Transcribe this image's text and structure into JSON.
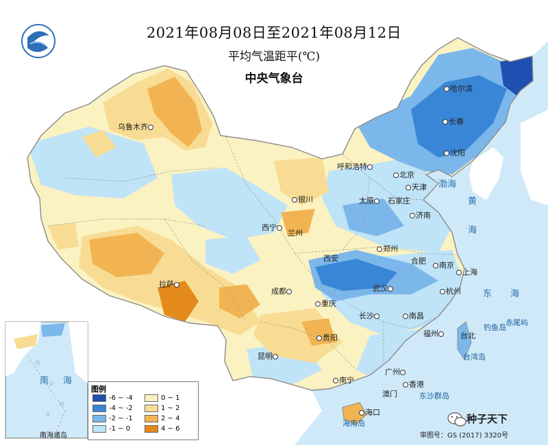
{
  "header": {
    "title": "2021年08月08日至2021年08月12日",
    "subtitle": "平均气温距平(℃)",
    "agency": "中央气象台"
  },
  "colors": {
    "neg_6_4": "#1f4fb0",
    "neg_4_2": "#3a86d6",
    "neg_2_1": "#7bb7ea",
    "neg_1_0": "#bfe3f7",
    "pos_0_1": "#fbf2c2",
    "pos_1_2": "#f8dc93",
    "pos_2_4": "#f2b452",
    "pos_4_6": "#e48a1c",
    "sea": "#cfe9f8"
  },
  "legend": {
    "title": "图例",
    "items": [
      {
        "label": "-6 ~ -4",
        "color": "#1f4fb0"
      },
      {
        "label": "-4 ~ -2",
        "color": "#3a86d6"
      },
      {
        "label": "-2 ~ -1",
        "color": "#7bb7ea"
      },
      {
        "label": "-1 ~ 0",
        "color": "#bfe3f7"
      },
      {
        "label": "0 ~ 1",
        "color": "#fbf2c2"
      },
      {
        "label": "1 ~ 2",
        "color": "#f8dc93"
      },
      {
        "label": "2 ~ 4",
        "color": "#f2b452"
      },
      {
        "label": "4 ~ 6",
        "color": "#e48a1c"
      }
    ]
  },
  "cities": {
    "urumqi": "乌鲁木齐",
    "harbin": "哈尔滨",
    "changchun": "长春",
    "shenyang": "沈阳",
    "hohhot": "呼和浩特",
    "beijing": "北京",
    "tianjin": "天津",
    "taiyuan": "太原",
    "shijiazhuang": "石家庄",
    "jinan": "济南",
    "yinchuan": "银川",
    "xining": "西宁",
    "lanzhou": "兰州",
    "xian": "西安",
    "zhengzhou": "郑州",
    "hefei": "合肥",
    "nanjing": "南京",
    "shanghai": "上海",
    "hangzhou": "杭州",
    "wuhan": "武汉",
    "chengdu": "成都",
    "chongqing": "重庆",
    "changsha": "长沙",
    "nanchang": "南昌",
    "fuzhou": "福州",
    "taipei": "台北",
    "lhasa": "拉萨",
    "guiyang": "贵阳",
    "kunming": "昆明",
    "nanning": "南宁",
    "guangzhou": "广州",
    "hongkong": "香港",
    "macau": "澳门",
    "haikou": "海口"
  },
  "places": {
    "diaoyu": "钓鱼岛",
    "chiwei": "赤尾屿",
    "taiwan_island": "台湾岛",
    "hainan_island": "海南岛",
    "dongsha": "东沙群岛"
  },
  "seas": {
    "bohai": "渤海",
    "yellow_sea_1": "黄",
    "yellow_sea_2": "海",
    "east_sea_1": "东",
    "east_sea_2": "海",
    "south_sea_1": "南",
    "south_sea_2": "海"
  },
  "inset": {
    "label": "南海诸岛"
  },
  "footer": {
    "approval": "审图号：GS (2017) 3320号"
  },
  "watermark": {
    "text": "种子天下",
    "icon": "wechat-icon"
  }
}
